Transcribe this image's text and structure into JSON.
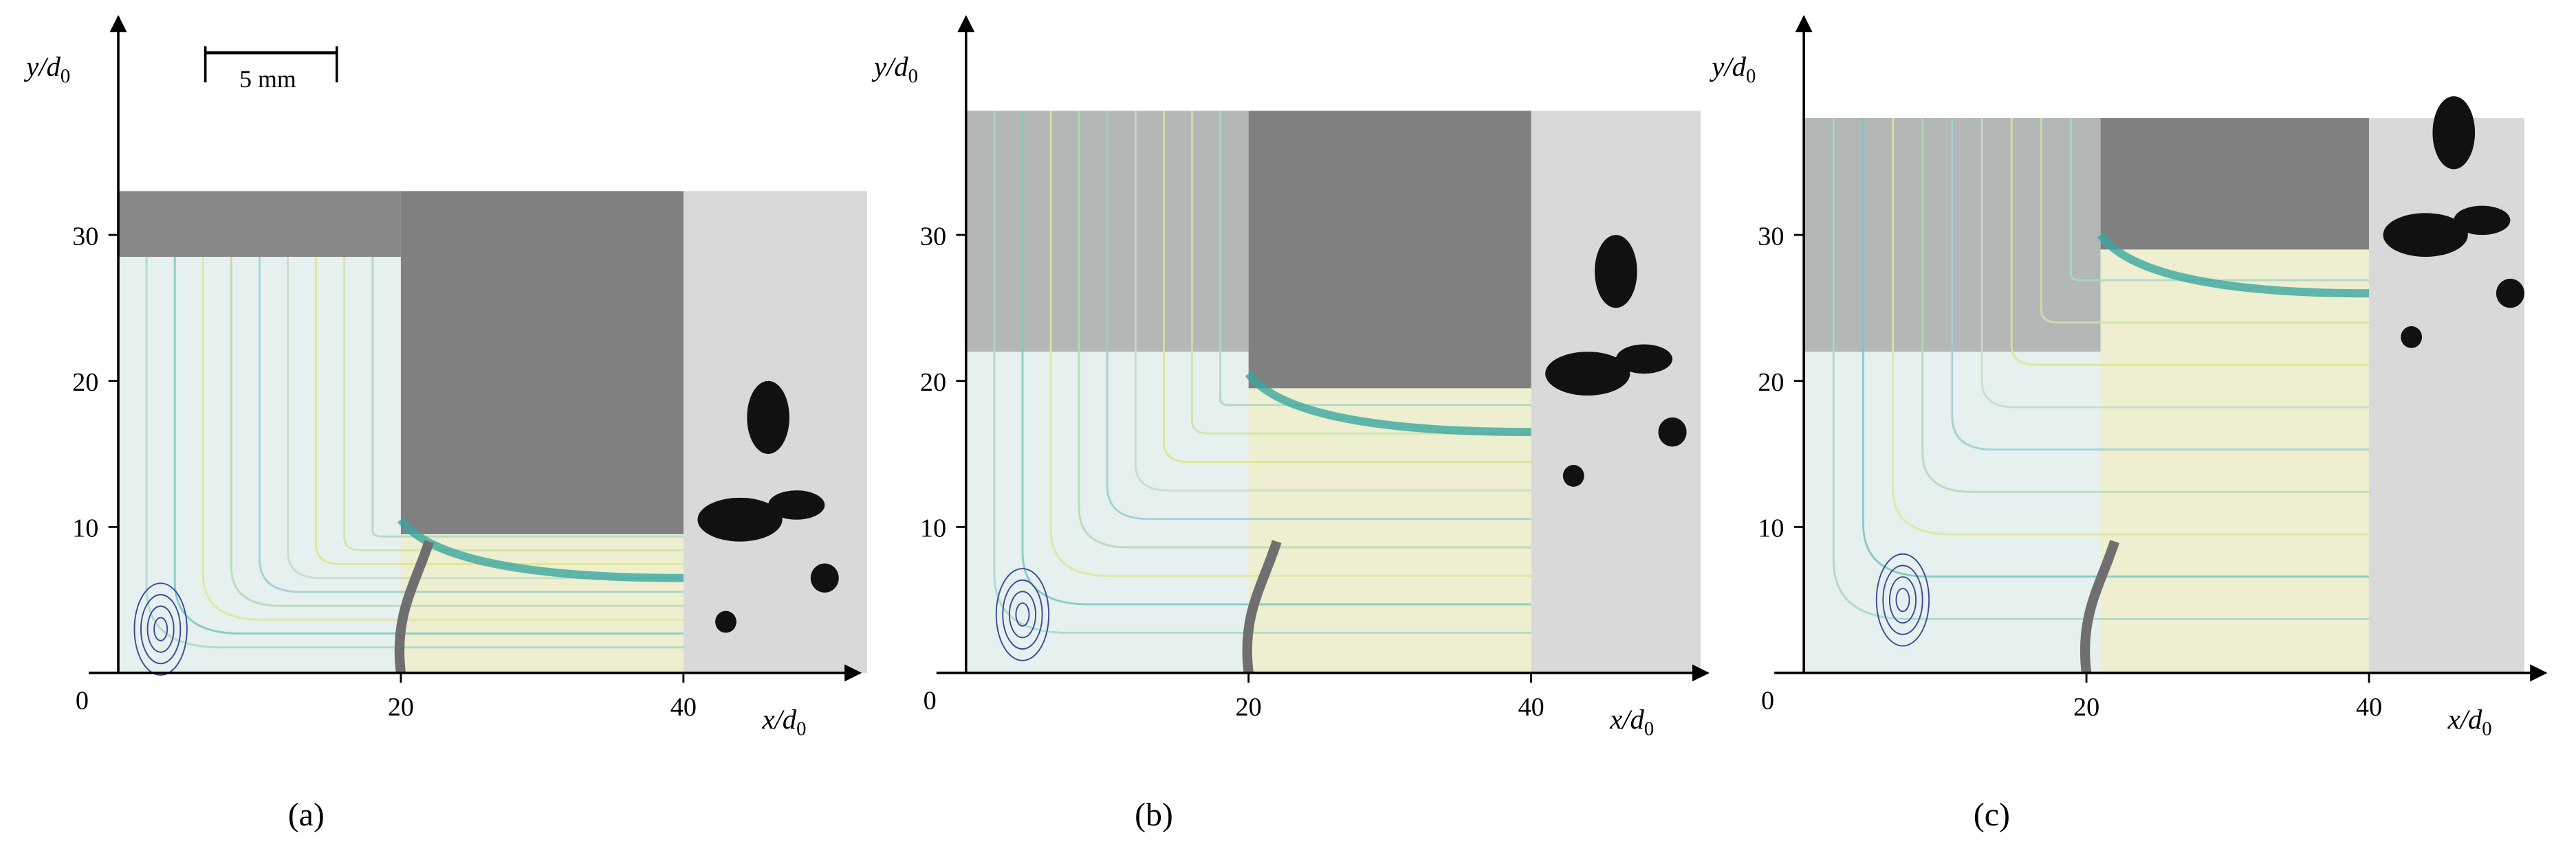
{
  "scale_bar": "5 mm",
  "panels": [
    {
      "label": "(a)",
      "x_axis_label": {
        "text": "x/d",
        "subscript": "0"
      },
      "y_axis_label": {
        "text": "y/d",
        "subscript": "0"
      },
      "x_ticks": [
        "0",
        "20",
        "40"
      ],
      "y_ticks": [
        "10",
        "20",
        "30"
      ]
    },
    {
      "label": "(b)",
      "x_axis_label": {
        "text": "x/d",
        "subscript": "0"
      },
      "y_axis_label": {
        "text": "y/d",
        "subscript": "0"
      },
      "x_ticks": [
        "0",
        "20",
        "40"
      ],
      "y_ticks": [
        "10",
        "20",
        "30"
      ]
    },
    {
      "label": "(c)",
      "x_axis_label": {
        "text": "x/d",
        "subscript": "0"
      },
      "y_axis_label": {
        "text": "y/d",
        "subscript": "0"
      },
      "x_ticks": [
        "0",
        "20",
        "40"
      ],
      "y_ticks": [
        "10",
        "20",
        "30"
      ]
    }
  ]
}
